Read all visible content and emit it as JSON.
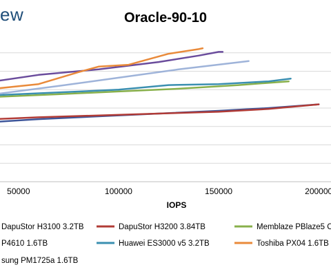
{
  "brand_text": "ew",
  "colors": {
    "brand": "#1f4e79",
    "grid": "#d9d9d9",
    "axis": "#bfbfbf"
  },
  "chart_data": {
    "type": "line",
    "title": "Oracle-90-10",
    "xlabel": "IOPS",
    "ylabel": "",
    "x_ticks": [
      {
        "value": 50000,
        "label": "50000"
      },
      {
        "value": 100000,
        "label": "100000"
      },
      {
        "value": 150000,
        "label": "150000"
      },
      {
        "value": 200000,
        "label": "200000"
      }
    ],
    "xlim": [
      38000,
      202000
    ],
    "ylim": [
      0,
      8
    ],
    "y_grid": [
      1,
      2,
      3,
      4,
      5,
      6,
      7
    ],
    "grid": true,
    "legend_position": "bottom",
    "series": [
      {
        "name": "DapuStor H3100 3.2TB",
        "color": "#3d5599",
        "x": [
          38000,
          60000,
          90000,
          120000,
          150000,
          175000,
          200000
        ],
        "y": [
          3.25,
          3.4,
          3.55,
          3.7,
          3.85,
          4.0,
          4.2
        ]
      },
      {
        "name": "DapuStor H3200 3.84TB",
        "color": "#b13b36",
        "x": [
          38000,
          60000,
          90000,
          120000,
          150000,
          175000,
          200000
        ],
        "y": [
          3.4,
          3.5,
          3.6,
          3.7,
          3.8,
          3.95,
          4.2
        ]
      },
      {
        "name": "Memblaze PBlaze5 C",
        "color": "#88b04b",
        "x": [
          38000,
          70000,
          100000,
          130000,
          160000,
          185000
        ],
        "y": [
          4.6,
          4.75,
          4.9,
          5.05,
          5.25,
          5.45
        ]
      },
      {
        "name": "P4610 1.6TB",
        "color": "#6a4c9c",
        "x": [
          38000,
          60000,
          90000,
          120000,
          140000,
          150000,
          152000
        ],
        "y": [
          5.45,
          5.8,
          6.1,
          6.5,
          6.85,
          7.05,
          7.05
        ]
      },
      {
        "name": "Huawei ES3000 v5 3.2TB",
        "color": "#3a8fb0",
        "x": [
          38000,
          70000,
          100000,
          125000,
          150000,
          175000,
          186000
        ],
        "y": [
          4.7,
          4.85,
          5.0,
          5.25,
          5.3,
          5.45,
          5.6
        ]
      },
      {
        "name": "Toshiba PX04 1.6TB",
        "color": "#e98a3a",
        "x": [
          38000,
          60000,
          80000,
          90000,
          105000,
          125000,
          140000,
          142000
        ],
        "y": [
          5.05,
          5.3,
          5.95,
          6.25,
          6.35,
          6.95,
          7.2,
          7.25
        ]
      },
      {
        "name": "sung PM1725a 1.6TB",
        "color": "#9eb3d9",
        "x": [
          38000,
          70000,
          100000,
          130000,
          165000
        ],
        "y": [
          4.75,
          5.2,
          5.65,
          6.1,
          6.55
        ]
      }
    ]
  }
}
